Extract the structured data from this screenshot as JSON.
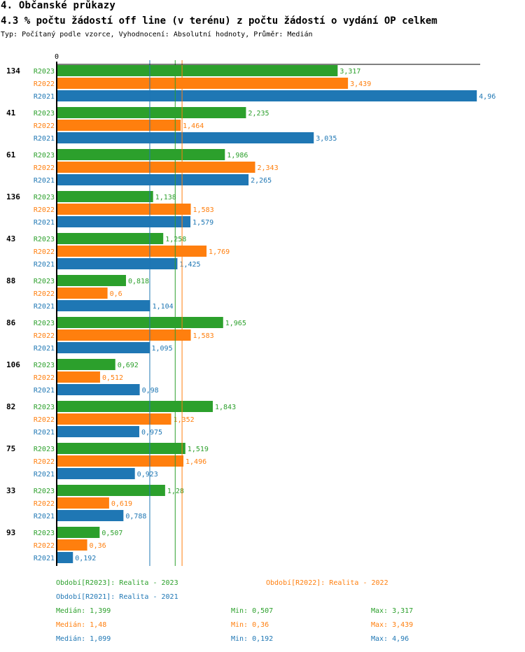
{
  "header": {
    "section": "4. Občanské průkazy",
    "title": "4.3 % počtu žádostí off line (v terénu) z počtu žádostí o vydání OP celkem",
    "subtitle": "Typ: Počítaný podle vzorce, Vyhodnocení: Absolutní hodnoty, Průměr: Medián"
  },
  "colors": {
    "R2023": "#2ca02c",
    "R2022": "#ff7f0e",
    "R2021": "#1f77b4"
  },
  "chart_data": {
    "type": "bar",
    "orientation": "horizontal",
    "title": "4.3 % počtu žádostí off line (v terénu) z počtu žádostí o vydání OP celkem",
    "xlabel": "",
    "ylabel": "",
    "x_tick_labels": [
      "0"
    ],
    "xlim": [
      0,
      5.0
    ],
    "categories": [
      "134",
      "41",
      "61",
      "136",
      "43",
      "88",
      "86",
      "106",
      "82",
      "75",
      "33",
      "93"
    ],
    "series": [
      {
        "name": "R2023",
        "color": "#2ca02c",
        "values": [
          3.317,
          2.235,
          1.986,
          1.138,
          1.258,
          0.818,
          1.965,
          0.692,
          1.843,
          1.519,
          1.28,
          0.507
        ],
        "labels": [
          "3,317",
          "2,235",
          "1,986",
          "1,138",
          "1,258",
          "0,818",
          "1,965",
          "0,692",
          "1,843",
          "1,519",
          "1,28",
          "0,507"
        ]
      },
      {
        "name": "R2022",
        "color": "#ff7f0e",
        "values": [
          3.439,
          1.464,
          2.343,
          1.583,
          1.769,
          0.6,
          1.583,
          0.512,
          1.352,
          1.496,
          0.619,
          0.36
        ],
        "labels": [
          "3,439",
          "1,464",
          "2,343",
          "1,583",
          "1,769",
          "0,6",
          "1,583",
          "0,512",
          "1,352",
          "1,496",
          "0,619",
          "0,36"
        ]
      },
      {
        "name": "R2021",
        "color": "#1f77b4",
        "values": [
          4.96,
          3.035,
          2.265,
          1.579,
          1.425,
          1.104,
          1.095,
          0.98,
          0.975,
          0.923,
          0.788,
          0.192
        ],
        "labels": [
          "4,96",
          "3,035",
          "2,265",
          "1,579",
          "1,425",
          "1,104",
          "1,095",
          "0,98",
          "0,975",
          "0,923",
          "0,788",
          "0,192"
        ]
      }
    ],
    "median_lines": [
      {
        "series": "R2023",
        "value": 1.399
      },
      {
        "series": "R2022",
        "value": 1.48
      },
      {
        "series": "R2021",
        "value": 1.099
      }
    ],
    "legend": {
      "placement": "bottom",
      "periods": [
        {
          "series": "R2023",
          "text": "Období[R2023]: Realita - 2023"
        },
        {
          "series": "R2022",
          "text": "Období[R2022]: Realita - 2022"
        },
        {
          "series": "R2021",
          "text": "Období[R2021]: Realita - 2021"
        }
      ],
      "stats": [
        {
          "series": "R2023",
          "median": "Medián: 1,399",
          "min": "Min: 0,507",
          "max": "Max: 3,317"
        },
        {
          "series": "R2022",
          "median": "Medián: 1,48",
          "min": "Min: 0,36",
          "max": "Max: 3,439"
        },
        {
          "series": "R2021",
          "median": "Medián: 1,099",
          "min": "Min: 0,192",
          "max": "Max: 4,96"
        }
      ]
    }
  }
}
